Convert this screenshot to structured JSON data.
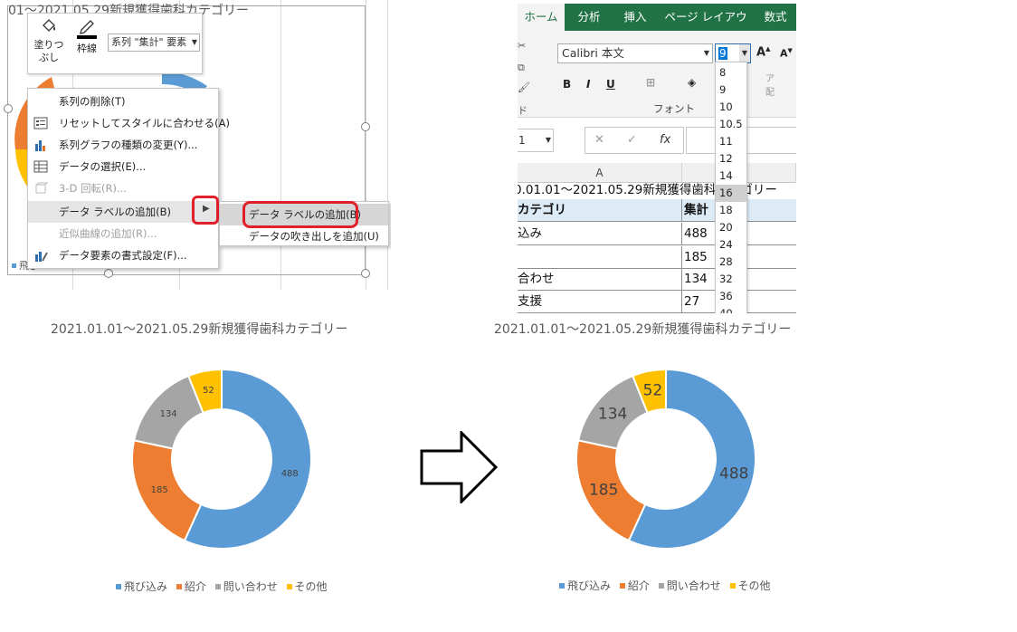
{
  "colors": {
    "blue": "#5b9bd5",
    "orange": "#ed7d31",
    "gray": "#a5a5a5",
    "gold": "#ffc000",
    "excel_green": "#217346",
    "highlight_red": "#e0202a"
  },
  "top_left": {
    "bg_title": "01〜2021.05.29新規獲得歯科カテゴリー",
    "bg_legend": "飛び",
    "mini_toolbar": {
      "fill_label": "塗りつ\nぶし",
      "outline_label": "枠線",
      "series_select": "系列 \"集計\" 要素"
    },
    "context_menu": [
      {
        "label": "系列の削除(T)",
        "disabled": false,
        "icon": "none"
      },
      {
        "label": "リセットしてスタイルに合わせる(A)",
        "disabled": false,
        "icon": "reset-style-icon"
      },
      {
        "label": "系列グラフの種類の変更(Y)...",
        "disabled": false,
        "icon": "chart-type-icon"
      },
      {
        "label": "データの選択(E)...",
        "disabled": false,
        "icon": "select-data-icon"
      },
      {
        "label": "3-D 回転(R)...",
        "disabled": true,
        "icon": "rotate-3d-icon"
      },
      {
        "label": "データ ラベルの追加(B)",
        "disabled": false,
        "icon": "none"
      },
      {
        "label": "近似曲線の追加(R)...",
        "disabled": true,
        "icon": "none"
      },
      {
        "label": "データ要素の書式設定(F)...",
        "disabled": false,
        "icon": "format-data-icon"
      }
    ],
    "submenu": [
      {
        "label": "データ ラベルの追加(B)"
      },
      {
        "label": "データの吹き出しを追加(U)"
      }
    ]
  },
  "top_right": {
    "tabs": [
      "ホーム",
      "分析",
      "挿入",
      "ページ レイアウト",
      "数式"
    ],
    "active_tab": "ホーム",
    "font_name": "Calibri 本文",
    "font_size": "9",
    "font_group_label": "フォント",
    "name_box": "1",
    "fx_label": "fx",
    "col_a": "A",
    "col_b": "B",
    "sheet_title": "0.01.01〜2021.05.29新規獲得歯科カテゴリー",
    "rows": [
      {
        "c1": "カテゴリ",
        "c2": "集計",
        "header": true
      },
      {
        "c1": "込み",
        "c2": "488"
      },
      {
        "c1": "",
        "c2": "185"
      },
      {
        "c1": "合わせ",
        "c2": "134"
      },
      {
        "c1": "支援",
        "c2": "27"
      }
    ],
    "size_options": [
      "8",
      "9",
      "10",
      "10.5",
      "11",
      "12",
      "14",
      "16",
      "18",
      "20",
      "24",
      "28",
      "32",
      "36",
      "40"
    ],
    "highlighted_size": "16",
    "left_stub_text": "ド",
    "align_stub": "ア\n配"
  },
  "chart_data": [
    {
      "type": "pie",
      "variant": "donut",
      "title": "2021.01.01〜2021.05.29新規獲得歯科カテゴリー",
      "categories": [
        "飛び込み",
        "紹介",
        "問い合わせ",
        "その他"
      ],
      "values": [
        488,
        185,
        134,
        52
      ],
      "label_font": "small",
      "legend": "bottom"
    },
    {
      "type": "pie",
      "variant": "donut",
      "title": "2021.01.01〜2021.05.29新規獲得歯科カテゴリー",
      "categories": [
        "飛び込み",
        "紹介",
        "問い合わせ",
        "その他"
      ],
      "values": [
        488,
        185,
        134,
        52
      ],
      "label_font": "large",
      "legend": "bottom"
    }
  ]
}
